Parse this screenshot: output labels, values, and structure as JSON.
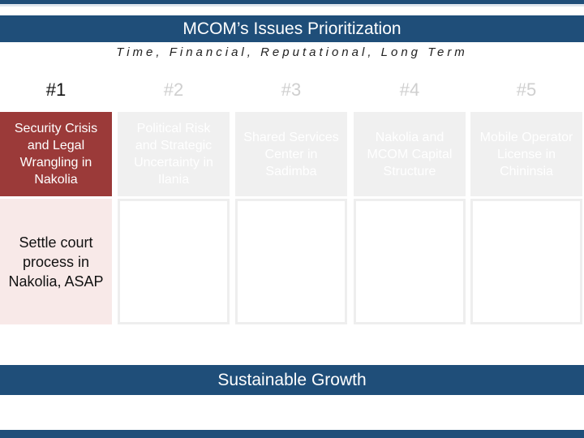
{
  "title": "MCOM’s Issues Prioritization",
  "subtitle": "Time, Financial, Reputational, Long Term",
  "priorities": [
    {
      "rank": "#1",
      "issue": "Security Crisis and Legal Wrangling in Nakolia",
      "action": "Settle court process in Nakolia, ASAP"
    },
    {
      "rank": "#2",
      "issue": "Political Risk and Strategic Uncertainty in Ilania",
      "action": ""
    },
    {
      "rank": "#3",
      "issue": "Shared Services Center in Sadimba",
      "action": ""
    },
    {
      "rank": "#4",
      "issue": "Nakolia and MCOM Capital Structure",
      "action": ""
    },
    {
      "rank": "#5",
      "issue": "Mobile Operator License in Chininsia",
      "action": ""
    }
  ],
  "footer": "Sustainable Growth",
  "colors": {
    "navy": "#1f4e79",
    "highlight": "#9b3a39",
    "highlight_light": "#f8e9e8",
    "muted_box": "#f0f0f0"
  }
}
